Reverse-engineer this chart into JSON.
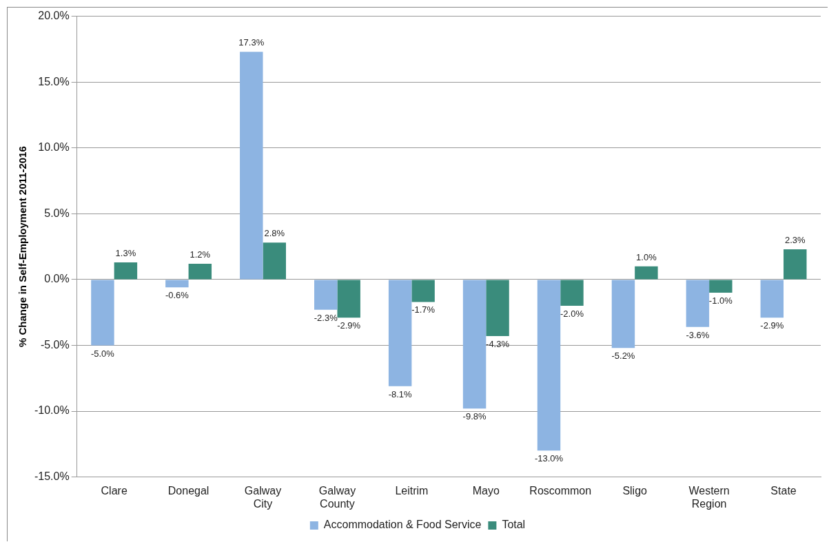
{
  "chart_data": {
    "type": "bar",
    "ylabel": "% Change in Self-Employment 2011-2016",
    "categories": [
      "Clare",
      "Donegal",
      "Galway City",
      "Galway County",
      "Leitrim",
      "Mayo",
      "Roscommon",
      "Sligo",
      "Western Region",
      "State"
    ],
    "series": [
      {
        "name": "Accommodation & Food Service",
        "color": "#8db4e2",
        "values": [
          -5.0,
          -0.6,
          17.3,
          -2.3,
          -8.1,
          -9.8,
          -13.0,
          -5.2,
          -3.6,
          -2.9
        ],
        "value_labels": [
          "-5.0%",
          "-0.6%",
          "17.3%",
          "-2.3%",
          "-8.1%",
          "-9.8%",
          "-13.0%",
          "-5.2%",
          "-3.6%",
          "-2.9%"
        ]
      },
      {
        "name": "Total",
        "color": "#3a8c7c",
        "values": [
          1.3,
          1.2,
          2.8,
          -2.9,
          -1.7,
          -4.3,
          -2.0,
          1.0,
          -1.0,
          2.3
        ],
        "value_labels": [
          "1.3%",
          "1.2%",
          "2.8%",
          "-2.9%",
          "-1.7%",
          "-4.3%",
          "-2.0%",
          "1.0%",
          "-1.0%",
          "2.3%"
        ]
      }
    ],
    "ylim": [
      -15,
      20
    ],
    "yticks": [
      {
        "value": -15,
        "label": "-15.0%"
      },
      {
        "value": -10,
        "label": "-10.0%"
      },
      {
        "value": -5,
        "label": "-5.0%"
      },
      {
        "value": 0,
        "label": "0.0%"
      },
      {
        "value": 5,
        "label": "5.0%"
      },
      {
        "value": 10,
        "label": "10.0%"
      },
      {
        "value": 15,
        "label": "15.0%"
      },
      {
        "value": 20,
        "label": "20.0%"
      }
    ],
    "grid": "y",
    "legend": "bottom"
  }
}
